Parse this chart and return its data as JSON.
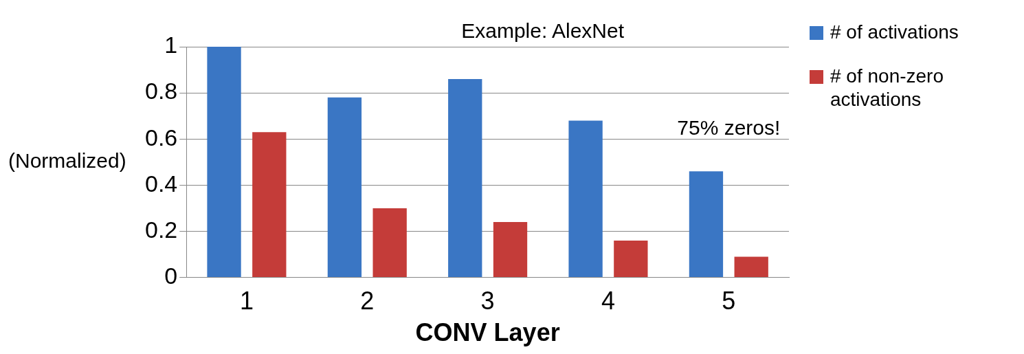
{
  "chart_data": {
    "type": "bar",
    "title": "Example: AlexNet",
    "xlabel": "CONV Layer",
    "ylabel": "(Normalized)",
    "categories": [
      "1",
      "2",
      "3",
      "4",
      "5"
    ],
    "series": [
      {
        "name": "# of activations",
        "color": "#3a76c4",
        "values": [
          1.0,
          0.78,
          0.86,
          0.68,
          0.46
        ]
      },
      {
        "name": "# of non-zero activations",
        "color": "#c43c39",
        "values": [
          0.63,
          0.3,
          0.24,
          0.16,
          0.09
        ]
      }
    ],
    "ylim": [
      0,
      1
    ],
    "yticks": [
      0,
      0.2,
      0.4,
      0.6,
      0.8,
      1
    ],
    "grid": "y",
    "legend": "top right",
    "annotations": [
      "75% zeros!"
    ]
  }
}
